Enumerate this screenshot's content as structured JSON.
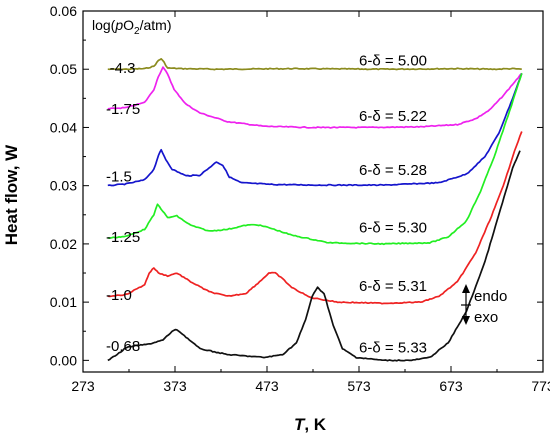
{
  "chart_data": {
    "type": "line",
    "title": "",
    "xlabel_italic": "T",
    "xlabel_rest": ", K",
    "ylabel": "Heat flow, W",
    "xlim": [
      273,
      773
    ],
    "ylim": [
      -0.002,
      0.06
    ],
    "xticks": [
      273,
      373,
      473,
      573,
      673,
      773
    ],
    "yticks": [
      {
        "v": 0.0,
        "label": "0.00"
      },
      {
        "v": 0.01,
        "label": "0.01"
      },
      {
        "v": 0.02,
        "label": "0.02"
      },
      {
        "v": 0.03,
        "label": "0.03"
      },
      {
        "v": 0.04,
        "label": "0.04"
      },
      {
        "v": 0.05,
        "label": "0.05"
      },
      {
        "v": 0.06,
        "label": "0.06"
      }
    ],
    "legend_title": {
      "pre": "log(",
      "italic": "p",
      "main": "O",
      "sub": "2",
      "post": "/atm)"
    },
    "endo_label": "endo",
    "exo_label": "exo",
    "series": [
      {
        "name": "-4.3",
        "composition": "6-δ = 5.00",
        "color": "#8b8b1e",
        "label_pos": [
          302,
          0.0502
        ],
        "comp_pos": [
          610,
          0.0515
        ],
        "x": [
          300,
          320,
          340,
          350,
          355,
          358,
          361,
          365,
          380,
          420,
          500,
          600,
          680,
          720,
          740,
          750
        ],
        "y": [
          0.05,
          0.05,
          0.0501,
          0.0505,
          0.0515,
          0.0518,
          0.0512,
          0.0502,
          0.0501,
          0.05,
          0.0501,
          0.05,
          0.0501,
          0.05,
          0.0501,
          0.05
        ]
      },
      {
        "name": "-1.75",
        "composition": "6-δ = 5.22",
        "color": "#ee22ee",
        "label_pos": [
          298,
          0.0432
        ],
        "comp_pos": [
          610,
          0.042
        ],
        "x": [
          300,
          320,
          340,
          350,
          355,
          360,
          365,
          372,
          385,
          400,
          430,
          470,
          520,
          580,
          640,
          680,
          700,
          715,
          730,
          742,
          750
        ],
        "y": [
          0.0432,
          0.0434,
          0.0443,
          0.0465,
          0.0488,
          0.0503,
          0.0492,
          0.0465,
          0.044,
          0.0425,
          0.041,
          0.0402,
          0.04,
          0.04,
          0.0401,
          0.0405,
          0.0415,
          0.043,
          0.0455,
          0.0478,
          0.0493
        ]
      },
      {
        "name": "-1.5",
        "composition": "6-δ = 5.28",
        "color": "#1515cc",
        "label_pos": [
          298,
          0.0316
        ],
        "comp_pos": [
          610,
          0.0327
        ],
        "x": [
          300,
          320,
          340,
          350,
          355,
          358,
          363,
          370,
          385,
          400,
          412,
          418,
          425,
          432,
          445,
          480,
          530,
          600,
          660,
          690,
          710,
          725,
          740,
          750
        ],
        "y": [
          0.03,
          0.0303,
          0.031,
          0.0328,
          0.0352,
          0.0361,
          0.0345,
          0.0328,
          0.0317,
          0.0318,
          0.0333,
          0.0341,
          0.0335,
          0.0315,
          0.0305,
          0.0302,
          0.0301,
          0.0301,
          0.0305,
          0.032,
          0.035,
          0.039,
          0.045,
          0.0493
        ]
      },
      {
        "name": "-1.25",
        "composition": "6-δ = 5.30",
        "color": "#22ee22",
        "label_pos": [
          298,
          0.0212
        ],
        "comp_pos": [
          610,
          0.0228
        ],
        "x": [
          300,
          320,
          340,
          350,
          354,
          358,
          365,
          375,
          390,
          410,
          430,
          450,
          462,
          475,
          500,
          540,
          600,
          650,
          670,
          690,
          705,
          720,
          735,
          750
        ],
        "y": [
          0.021,
          0.0213,
          0.0225,
          0.025,
          0.0268,
          0.026,
          0.0245,
          0.0248,
          0.0232,
          0.0222,
          0.0225,
          0.0232,
          0.0233,
          0.0228,
          0.0215,
          0.0202,
          0.02,
          0.0202,
          0.0212,
          0.024,
          0.029,
          0.035,
          0.042,
          0.0493
        ]
      },
      {
        "name": "-1.0",
        "composition": "6-δ = 5.31",
        "color": "#ee2222",
        "label_pos": [
          298,
          0.0112
        ],
        "comp_pos": [
          610,
          0.0128
        ],
        "x": [
          300,
          320,
          340,
          345,
          350,
          355,
          365,
          375,
          390,
          410,
          430,
          450,
          465,
          475,
          482,
          490,
          500,
          520,
          550,
          600,
          640,
          660,
          680,
          700,
          715,
          730,
          742,
          750
        ],
        "y": [
          0.011,
          0.0113,
          0.013,
          0.015,
          0.0159,
          0.015,
          0.0145,
          0.015,
          0.0135,
          0.0118,
          0.011,
          0.0115,
          0.0135,
          0.015,
          0.015,
          0.014,
          0.0125,
          0.0108,
          0.01,
          0.0098,
          0.01,
          0.011,
          0.0135,
          0.0185,
          0.024,
          0.03,
          0.036,
          0.0393
        ]
      },
      {
        "name": "-0.68",
        "composition": "6-δ = 5.33",
        "color": "#111111",
        "label_pos": [
          298,
          0.0025
        ],
        "comp_pos": [
          610,
          0.0022
        ],
        "x": [
          300,
          310,
          320,
          330,
          345,
          360,
          370,
          375,
          385,
          400,
          430,
          470,
          490,
          505,
          515,
          522,
          528,
          535,
          545,
          555,
          570,
          600,
          630,
          650,
          670,
          690,
          710,
          725,
          740,
          748
        ],
        "y": [
          0.0,
          0.001,
          0.0022,
          0.0025,
          0.0028,
          0.0035,
          0.005,
          0.0053,
          0.004,
          0.002,
          0.001,
          0.0005,
          0.001,
          0.003,
          0.007,
          0.011,
          0.0125,
          0.0115,
          0.006,
          0.002,
          0.0005,
          0.0,
          0.0,
          0.0005,
          0.003,
          0.0085,
          0.017,
          0.025,
          0.033,
          0.036
        ]
      }
    ]
  }
}
